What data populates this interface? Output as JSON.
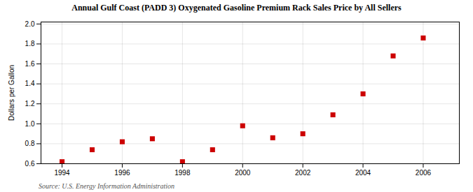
{
  "chart_data": {
    "type": "scatter",
    "title": "Annual Gulf Coast (PADD 3) Oxygenated Gasoline Premium Rack Sales Price by All Sellers",
    "ylabel": "Dollars per Gallon",
    "source": "Source: U.S. Energy Information Administration",
    "x": [
      1994,
      1995,
      1996,
      1997,
      1998,
      1999,
      2000,
      2001,
      2002,
      2003,
      2004,
      2005,
      2006
    ],
    "values": [
      0.62,
      0.74,
      0.82,
      0.85,
      0.62,
      0.74,
      0.98,
      0.86,
      0.9,
      1.09,
      1.3,
      1.68,
      1.86
    ],
    "xlim": [
      1993.3,
      2007.2
    ],
    "ylim": [
      0.6,
      2.02
    ],
    "xticks": [
      1994,
      1996,
      1998,
      2000,
      2002,
      2004,
      2006
    ],
    "yticks": [
      0.6,
      0.8,
      {
        "value": 1.0,
        "label": "1.0"
      },
      1.2,
      1.4,
      1.6,
      1.8,
      {
        "value": 2.0,
        "label": "2.0"
      }
    ],
    "color": "#cc0000",
    "marker": "square",
    "grid": true
  }
}
